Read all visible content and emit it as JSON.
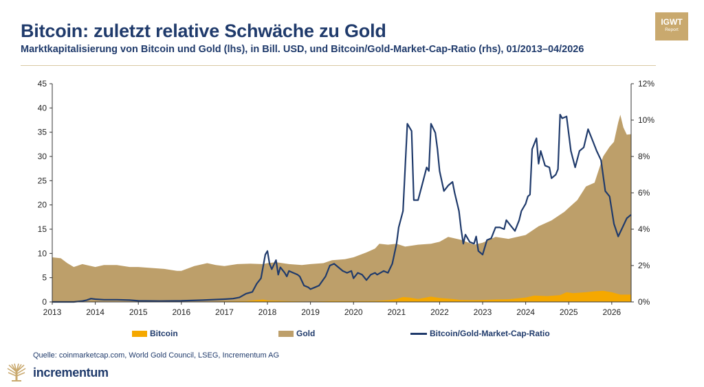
{
  "title": "Bitcoin: zuletzt relative Schwäche zu Gold",
  "subtitle": "Marktkapitalisierung von Bitcoin und Gold (lhs), in Bill. USD, und Bitcoin/Gold-Market-Cap-Ratio (rhs), 01/2013–04/2026",
  "badge": {
    "line1": "IGWT",
    "line2": "Report"
  },
  "source": "Quelle: coinmarketcap.com, World Gold Council, LSEG, Incrementum AG",
  "brand": {
    "name": "incrementum"
  },
  "colors": {
    "bitcoin": "#f5a800",
    "gold": "#bd9f6a",
    "ratio": "#1f3a6b",
    "accent": "#c9a96e"
  },
  "chart_data": {
    "type": "area",
    "x_ticks": [
      "2013",
      "2014",
      "2015",
      "2016",
      "2017",
      "2018",
      "2019",
      "2020",
      "2021",
      "2022",
      "2023",
      "2024",
      "2025",
      "2026"
    ],
    "y_left": {
      "ticks": [
        "0",
        "5",
        "10",
        "15",
        "20",
        "25",
        "30",
        "35",
        "40",
        "45"
      ],
      "range": [
        0,
        45
      ]
    },
    "y_right": {
      "ticks": [
        "0%",
        "2%",
        "4%",
        "6%",
        "8%",
        "10%",
        "12%"
      ],
      "range": [
        0,
        12
      ]
    },
    "legend": [
      "Bitcoin",
      "Gold",
      "Bitcoin/Gold-Market-Cap-Ratio"
    ],
    "legend_position": "bottom",
    "series": [
      {
        "name": "Gold",
        "axis": "left",
        "kind": "area",
        "points": [
          [
            2013.0,
            9.2
          ],
          [
            2013.2,
            9.0
          ],
          [
            2013.35,
            8.0
          ],
          [
            2013.5,
            7.2
          ],
          [
            2013.7,
            7.8
          ],
          [
            2014.0,
            7.2
          ],
          [
            2014.2,
            7.6
          ],
          [
            2014.5,
            7.6
          ],
          [
            2014.8,
            7.2
          ],
          [
            2015.0,
            7.2
          ],
          [
            2015.3,
            7.0
          ],
          [
            2015.6,
            6.8
          ],
          [
            2015.9,
            6.4
          ],
          [
            2016.0,
            6.4
          ],
          [
            2016.3,
            7.4
          ],
          [
            2016.6,
            8.0
          ],
          [
            2016.8,
            7.6
          ],
          [
            2017.0,
            7.4
          ],
          [
            2017.3,
            7.8
          ],
          [
            2017.6,
            7.9
          ],
          [
            2017.9,
            7.8
          ],
          [
            2018.0,
            8.0
          ],
          [
            2018.2,
            8.2
          ],
          [
            2018.5,
            7.8
          ],
          [
            2018.8,
            7.6
          ],
          [
            2019.0,
            7.8
          ],
          [
            2019.3,
            8.0
          ],
          [
            2019.5,
            8.6
          ],
          [
            2019.8,
            8.8
          ],
          [
            2020.0,
            9.2
          ],
          [
            2020.3,
            10.2
          ],
          [
            2020.5,
            11.0
          ],
          [
            2020.6,
            12.0
          ],
          [
            2020.8,
            11.8
          ],
          [
            2021.0,
            12.0
          ],
          [
            2021.2,
            11.4
          ],
          [
            2021.5,
            11.8
          ],
          [
            2021.8,
            12.0
          ],
          [
            2022.0,
            12.4
          ],
          [
            2022.2,
            13.4
          ],
          [
            2022.5,
            12.8
          ],
          [
            2022.8,
            11.8
          ],
          [
            2023.0,
            12.2
          ],
          [
            2023.3,
            13.4
          ],
          [
            2023.6,
            13.0
          ],
          [
            2023.9,
            13.6
          ],
          [
            2024.0,
            13.8
          ],
          [
            2024.3,
            15.6
          ],
          [
            2024.6,
            16.8
          ],
          [
            2024.9,
            18.6
          ],
          [
            2025.0,
            19.4
          ],
          [
            2025.2,
            21.0
          ],
          [
            2025.4,
            23.8
          ],
          [
            2025.6,
            24.6
          ],
          [
            2025.8,
            30.0
          ],
          [
            2025.95,
            32.0
          ],
          [
            2026.05,
            33.0
          ],
          [
            2026.15,
            37.0
          ],
          [
            2026.2,
            38.6
          ],
          [
            2026.27,
            36.0
          ],
          [
            2026.35,
            34.5
          ],
          [
            2026.45,
            34.6
          ]
        ]
      },
      {
        "name": "Bitcoin",
        "axis": "left",
        "kind": "area",
        "points": [
          [
            2013.0,
            0.0
          ],
          [
            2013.85,
            0.0
          ],
          [
            2013.9,
            0.1
          ],
          [
            2014.1,
            0.05
          ],
          [
            2016.5,
            0.05
          ],
          [
            2017.0,
            0.1
          ],
          [
            2017.5,
            0.2
          ],
          [
            2017.9,
            0.5
          ],
          [
            2018.0,
            0.3
          ],
          [
            2018.5,
            0.15
          ],
          [
            2019.0,
            0.07
          ],
          [
            2019.5,
            0.2
          ],
          [
            2020.0,
            0.15
          ],
          [
            2020.5,
            0.2
          ],
          [
            2020.8,
            0.35
          ],
          [
            2021.0,
            0.6
          ],
          [
            2021.15,
            1.0
          ],
          [
            2021.3,
            0.9
          ],
          [
            2021.5,
            0.6
          ],
          [
            2021.8,
            1.1
          ],
          [
            2022.0,
            0.8
          ],
          [
            2022.3,
            0.6
          ],
          [
            2022.5,
            0.4
          ],
          [
            2022.8,
            0.35
          ],
          [
            2023.0,
            0.4
          ],
          [
            2023.3,
            0.5
          ],
          [
            2023.6,
            0.55
          ],
          [
            2023.9,
            0.8
          ],
          [
            2024.0,
            0.9
          ],
          [
            2024.2,
            1.3
          ],
          [
            2024.5,
            1.2
          ],
          [
            2024.8,
            1.4
          ],
          [
            2024.95,
            2.0
          ],
          [
            2025.1,
            1.8
          ],
          [
            2025.4,
            2.0
          ],
          [
            2025.6,
            2.2
          ],
          [
            2025.8,
            2.3
          ],
          [
            2026.0,
            2.0
          ],
          [
            2026.2,
            1.5
          ],
          [
            2026.45,
            1.5
          ]
        ]
      },
      {
        "name": "Bitcoin/Gold-Market-Cap-Ratio",
        "axis": "right",
        "kind": "line",
        "points": [
          [
            2013.0,
            0.0
          ],
          [
            2013.3,
            0.0
          ],
          [
            2013.5,
            0.0
          ],
          [
            2013.7,
            0.05
          ],
          [
            2013.8,
            0.1
          ],
          [
            2013.9,
            0.18
          ],
          [
            2014.0,
            0.15
          ],
          [
            2014.2,
            0.12
          ],
          [
            2014.5,
            0.12
          ],
          [
            2014.8,
            0.1
          ],
          [
            2015.0,
            0.06
          ],
          [
            2015.5,
            0.05
          ],
          [
            2016.0,
            0.06
          ],
          [
            2016.5,
            0.1
          ],
          [
            2017.0,
            0.15
          ],
          [
            2017.2,
            0.18
          ],
          [
            2017.35,
            0.25
          ],
          [
            2017.5,
            0.45
          ],
          [
            2017.65,
            0.55
          ],
          [
            2017.75,
            1.0
          ],
          [
            2017.85,
            1.3
          ],
          [
            2017.95,
            2.6
          ],
          [
            2018.0,
            2.8
          ],
          [
            2018.05,
            2.1
          ],
          [
            2018.1,
            1.8
          ],
          [
            2018.2,
            2.3
          ],
          [
            2018.25,
            1.5
          ],
          [
            2018.3,
            1.9
          ],
          [
            2018.4,
            1.6
          ],
          [
            2018.45,
            1.4
          ],
          [
            2018.5,
            1.7
          ],
          [
            2018.6,
            1.6
          ],
          [
            2018.7,
            1.5
          ],
          [
            2018.75,
            1.4
          ],
          [
            2018.85,
            0.9
          ],
          [
            2018.95,
            0.8
          ],
          [
            2019.0,
            0.7
          ],
          [
            2019.1,
            0.8
          ],
          [
            2019.2,
            0.9
          ],
          [
            2019.35,
            1.4
          ],
          [
            2019.45,
            2.0
          ],
          [
            2019.55,
            2.1
          ],
          [
            2019.65,
            1.9
          ],
          [
            2019.75,
            1.7
          ],
          [
            2019.85,
            1.6
          ],
          [
            2019.95,
            1.7
          ],
          [
            2020.0,
            1.3
          ],
          [
            2020.1,
            1.6
          ],
          [
            2020.2,
            1.5
          ],
          [
            2020.3,
            1.2
          ],
          [
            2020.4,
            1.5
          ],
          [
            2020.5,
            1.6
          ],
          [
            2020.55,
            1.5
          ],
          [
            2020.7,
            1.7
          ],
          [
            2020.8,
            1.6
          ],
          [
            2020.9,
            2.1
          ],
          [
            2021.0,
            3.2
          ],
          [
            2021.05,
            4.1
          ],
          [
            2021.15,
            5.0
          ],
          [
            2021.25,
            9.8
          ],
          [
            2021.35,
            9.4
          ],
          [
            2021.4,
            5.6
          ],
          [
            2021.5,
            5.6
          ],
          [
            2021.6,
            6.5
          ],
          [
            2021.7,
            7.4
          ],
          [
            2021.75,
            7.2
          ],
          [
            2021.8,
            9.8
          ],
          [
            2021.9,
            9.3
          ],
          [
            2021.95,
            8.4
          ],
          [
            2022.0,
            7.2
          ],
          [
            2022.1,
            6.1
          ],
          [
            2022.2,
            6.4
          ],
          [
            2022.3,
            6.6
          ],
          [
            2022.35,
            6.0
          ],
          [
            2022.45,
            5.0
          ],
          [
            2022.5,
            4.0
          ],
          [
            2022.55,
            3.2
          ],
          [
            2022.6,
            3.7
          ],
          [
            2022.7,
            3.3
          ],
          [
            2022.8,
            3.2
          ],
          [
            2022.85,
            3.6
          ],
          [
            2022.9,
            2.8
          ],
          [
            2023.0,
            2.6
          ],
          [
            2023.1,
            3.4
          ],
          [
            2023.2,
            3.5
          ],
          [
            2023.3,
            4.1
          ],
          [
            2023.4,
            4.1
          ],
          [
            2023.5,
            4.0
          ],
          [
            2023.55,
            4.5
          ],
          [
            2023.65,
            4.2
          ],
          [
            2023.75,
            3.9
          ],
          [
            2023.85,
            4.5
          ],
          [
            2023.9,
            5.0
          ],
          [
            2024.0,
            5.4
          ],
          [
            2024.05,
            5.8
          ],
          [
            2024.1,
            5.9
          ],
          [
            2024.15,
            8.4
          ],
          [
            2024.25,
            9.0
          ],
          [
            2024.3,
            7.6
          ],
          [
            2024.35,
            8.3
          ],
          [
            2024.45,
            7.5
          ],
          [
            2024.55,
            7.4
          ],
          [
            2024.6,
            6.8
          ],
          [
            2024.7,
            7.0
          ],
          [
            2024.75,
            7.3
          ],
          [
            2024.8,
            10.3
          ],
          [
            2024.85,
            10.1
          ],
          [
            2024.95,
            10.2
          ],
          [
            2025.05,
            8.3
          ],
          [
            2025.15,
            7.4
          ],
          [
            2025.25,
            8.3
          ],
          [
            2025.35,
            8.5
          ],
          [
            2025.45,
            9.5
          ],
          [
            2025.55,
            8.9
          ],
          [
            2025.65,
            8.3
          ],
          [
            2025.75,
            7.8
          ],
          [
            2025.85,
            6.1
          ],
          [
            2025.95,
            5.8
          ],
          [
            2026.05,
            4.3
          ],
          [
            2026.15,
            3.6
          ],
          [
            2026.25,
            4.1
          ],
          [
            2026.35,
            4.6
          ],
          [
            2026.45,
            4.8
          ]
        ]
      }
    ]
  }
}
